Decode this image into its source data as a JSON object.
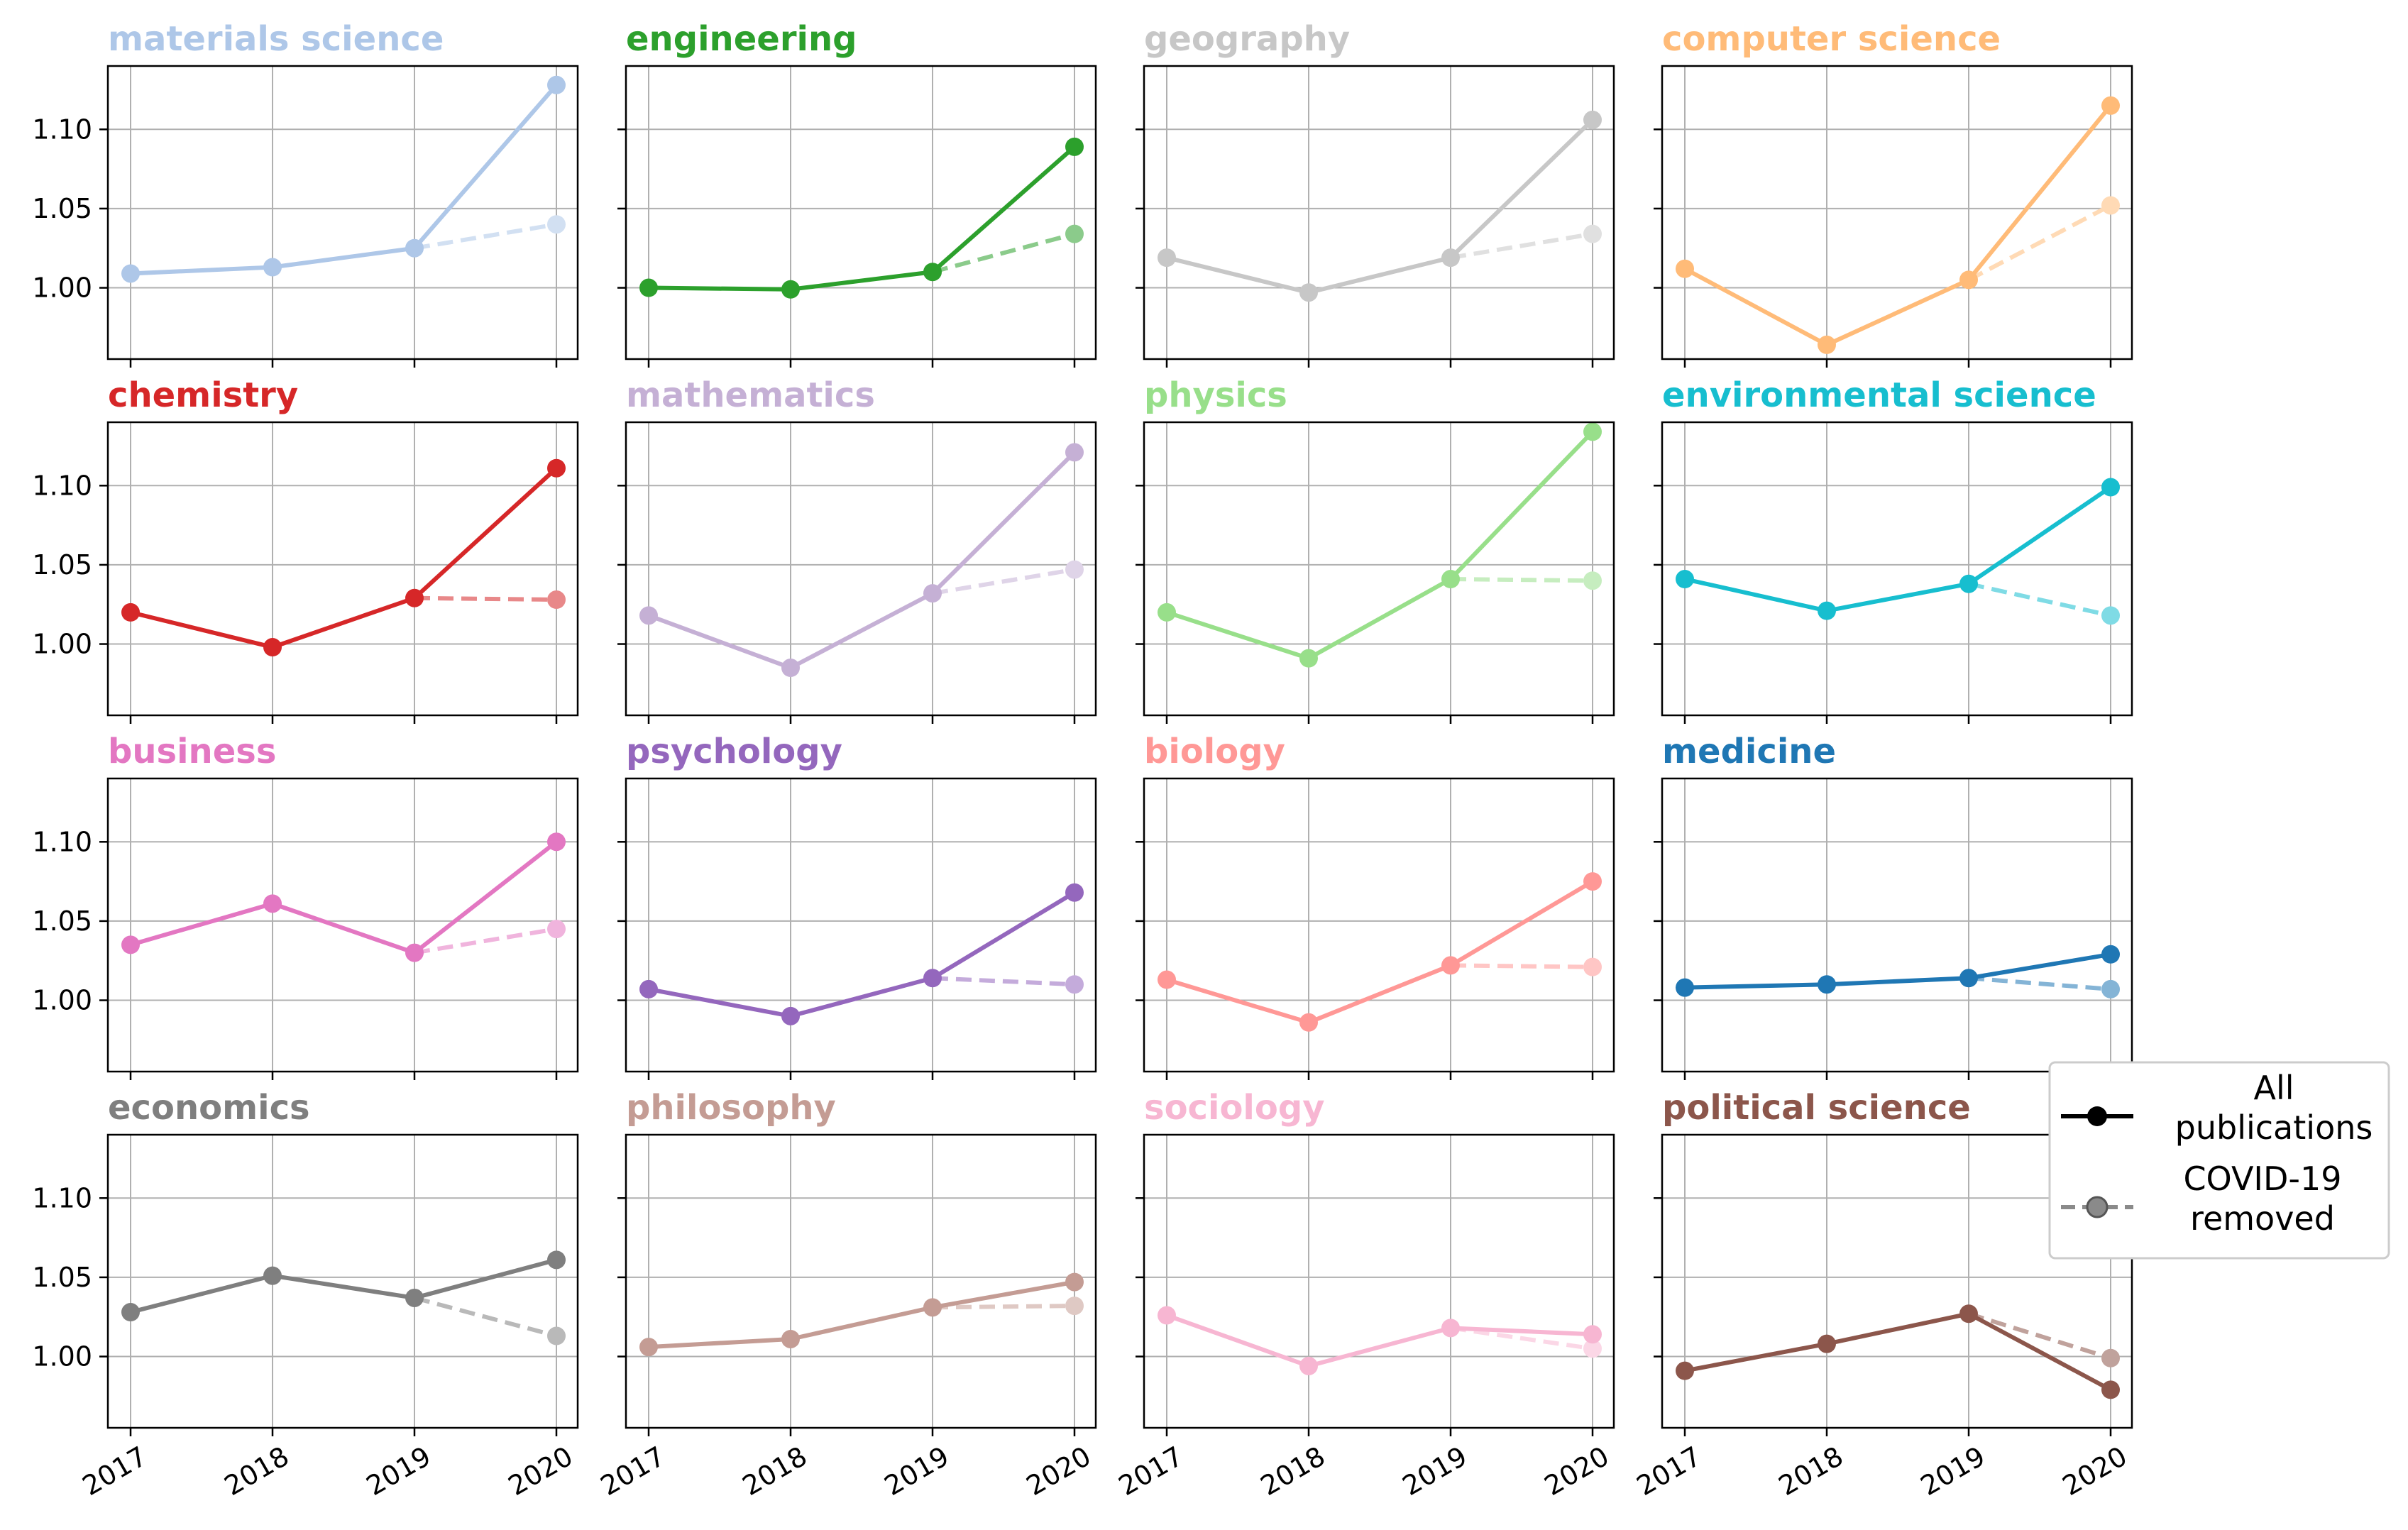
{
  "chart_data": {
    "type": "line",
    "layout": "4x4 small multiples, shared axes",
    "x": [
      "2017",
      "2018",
      "2019",
      "2020"
    ],
    "ylim": [
      0.955,
      1.14
    ],
    "yticks": [
      "1.00",
      "1.05",
      "1.10"
    ],
    "grid": true,
    "legend": {
      "placement": "right",
      "entries": [
        {
          "label": "All publications",
          "style": "solid"
        },
        {
          "label": "COVID-19 removed",
          "style": "dashed"
        }
      ]
    },
    "panels": [
      {
        "title": "materials science",
        "color": "#aec7e8",
        "all": [
          1.009,
          1.013,
          1.025,
          1.128
        ],
        "covid_removed": [
          null,
          null,
          1.025,
          1.04
        ]
      },
      {
        "title": "engineering",
        "color": "#2ca02c",
        "all": [
          1.0,
          0.999,
          1.01,
          1.089
        ],
        "covid_removed": [
          null,
          null,
          1.01,
          1.034
        ]
      },
      {
        "title": "geography",
        "color": "#c7c7c7",
        "all": [
          1.019,
          0.997,
          1.019,
          1.106
        ],
        "covid_removed": [
          null,
          null,
          1.019,
          1.034
        ]
      },
      {
        "title": "computer science",
        "color": "#ffbb78",
        "all": [
          1.012,
          0.964,
          1.005,
          1.115
        ],
        "covid_removed": [
          null,
          null,
          1.005,
          1.052
        ]
      },
      {
        "title": "chemistry",
        "color": "#d62728",
        "all": [
          1.02,
          0.998,
          1.029,
          1.111
        ],
        "covid_removed": [
          null,
          null,
          1.029,
          1.028
        ]
      },
      {
        "title": "mathematics",
        "color": "#c5b0d5",
        "all": [
          1.018,
          0.985,
          1.032,
          1.121
        ],
        "covid_removed": [
          null,
          null,
          1.032,
          1.047
        ]
      },
      {
        "title": "physics",
        "color": "#98df8a",
        "all": [
          1.02,
          0.991,
          1.041,
          1.134
        ],
        "covid_removed": [
          null,
          null,
          1.041,
          1.04
        ]
      },
      {
        "title": "environmental science",
        "color": "#17becf",
        "all": [
          1.041,
          1.021,
          1.038,
          1.099
        ],
        "covid_removed": [
          null,
          null,
          1.038,
          1.018
        ]
      },
      {
        "title": "business",
        "color": "#e377c2",
        "all": [
          1.035,
          1.061,
          1.03,
          1.1
        ],
        "covid_removed": [
          null,
          null,
          1.03,
          1.045
        ]
      },
      {
        "title": "psychology",
        "color": "#9467bd",
        "all": [
          1.007,
          0.99,
          1.014,
          1.068
        ],
        "covid_removed": [
          null,
          null,
          1.014,
          1.01
        ]
      },
      {
        "title": "biology",
        "color": "#ff9896",
        "all": [
          1.013,
          0.986,
          1.022,
          1.075
        ],
        "covid_removed": [
          null,
          null,
          1.022,
          1.021
        ]
      },
      {
        "title": "medicine",
        "color": "#1f77b4",
        "all": [
          1.008,
          1.01,
          1.014,
          1.029
        ],
        "covid_removed": [
          null,
          null,
          1.014,
          1.007
        ]
      },
      {
        "title": "economics",
        "color": "#7f7f7f",
        "all": [
          1.028,
          1.051,
          1.037,
          1.061
        ],
        "covid_removed": [
          null,
          null,
          1.037,
          1.013
        ]
      },
      {
        "title": "philosophy",
        "color": "#c49c94",
        "all": [
          1.006,
          1.011,
          1.031,
          1.047
        ],
        "covid_removed": [
          null,
          null,
          1.031,
          1.032
        ]
      },
      {
        "title": "sociology",
        "color": "#f7b6d2",
        "all": [
          1.026,
          0.994,
          1.018,
          1.014
        ],
        "covid_removed": [
          null,
          null,
          1.018,
          1.005
        ]
      },
      {
        "title": "political science",
        "color": "#8c564b",
        "all": [
          0.991,
          1.008,
          1.027,
          0.979
        ],
        "covid_removed": [
          null,
          null,
          1.027,
          0.999
        ]
      }
    ]
  }
}
